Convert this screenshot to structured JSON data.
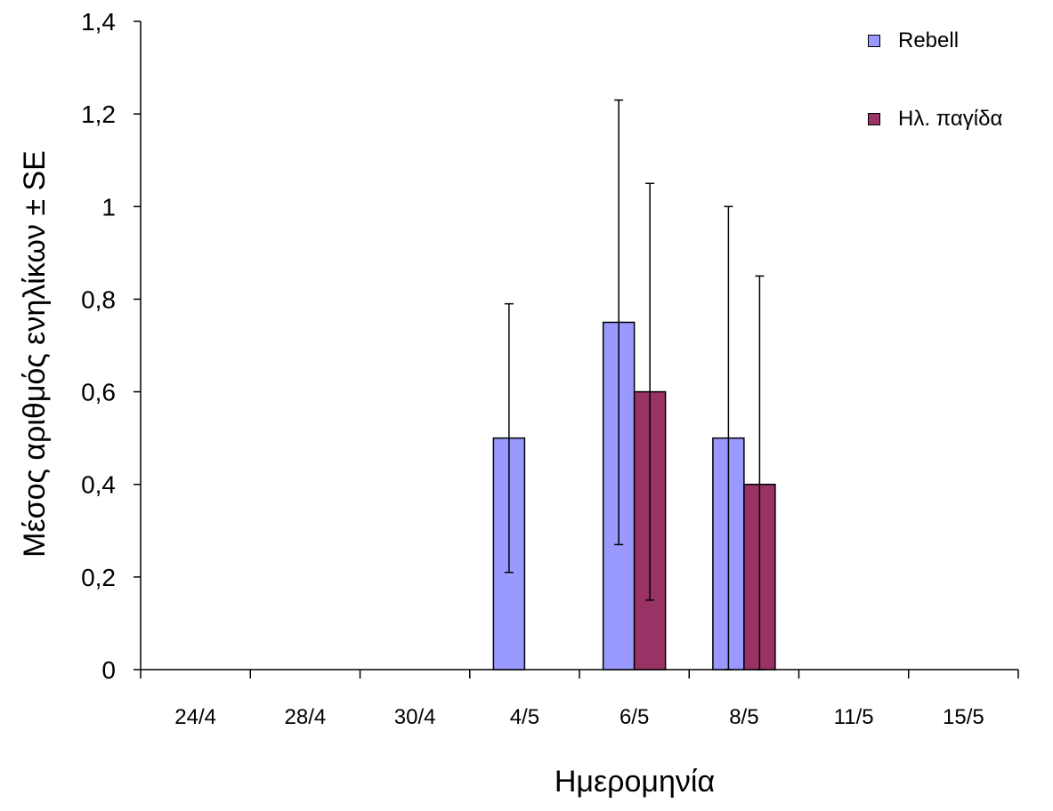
{
  "chart_data": {
    "type": "bar",
    "xlabel": "Ημερομηνία",
    "ylabel": "Μέσος αριθμός ενηλίκων ± SE",
    "ylim": [
      0,
      1.4
    ],
    "yticks": [
      "0",
      "0,2",
      "0,4",
      "0,6",
      "0,8",
      "1",
      "1,2",
      "1,4"
    ],
    "categories": [
      "24/4",
      "28/4",
      "30/4",
      "4/5",
      "6/5",
      "8/5",
      "11/5",
      "15/5"
    ],
    "legend_position": "top-right",
    "grid": false,
    "series": [
      {
        "name": "Rebell",
        "color": "#9999ff",
        "values": [
          0,
          0,
          0,
          0.5,
          0.75,
          0.5,
          0,
          0
        ],
        "errors": [
          0,
          0,
          0,
          0.29,
          0.48,
          0.5,
          0,
          0
        ]
      },
      {
        "name": "Ηλ. παγίδα",
        "color": "#993366",
        "values": [
          0,
          0,
          0,
          0,
          0.6,
          0.4,
          0,
          0
        ],
        "errors": [
          0,
          0,
          0,
          0,
          0.45,
          0.45,
          0,
          0
        ]
      }
    ]
  }
}
